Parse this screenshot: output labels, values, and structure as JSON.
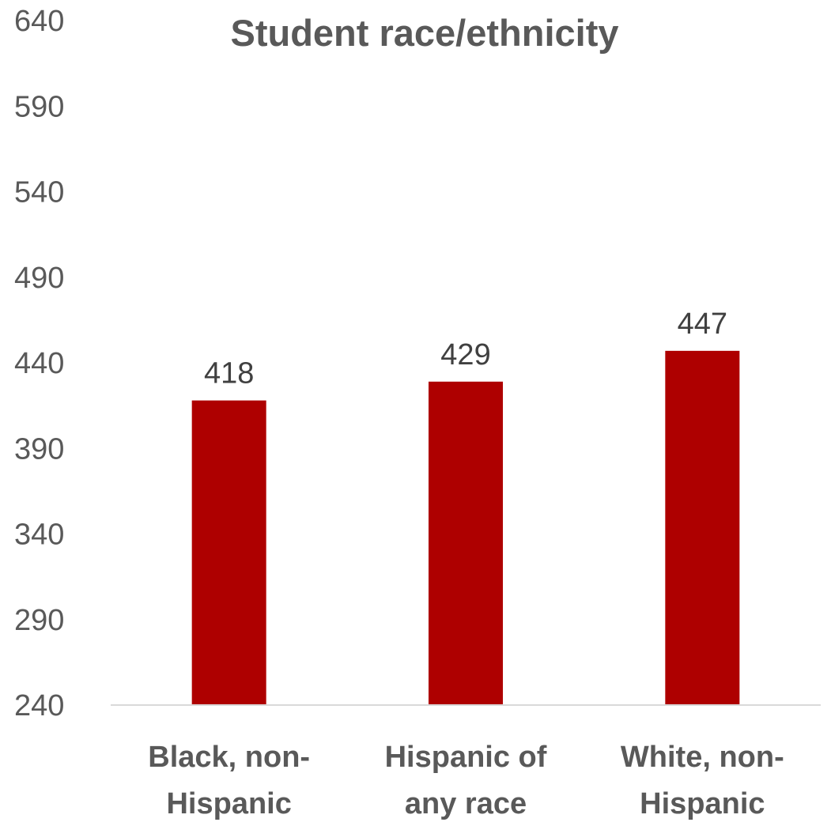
{
  "chart_data": {
    "type": "bar",
    "title": "Student race/ethnicity",
    "xlabel": "",
    "ylabel": "",
    "categories": [
      [
        "Black, non-",
        "Hispanic"
      ],
      [
        "Hispanic of",
        "any race"
      ],
      [
        "White, non-",
        "Hispanic"
      ]
    ],
    "values": [
      418,
      429,
      447
    ],
    "data_labels": [
      "418",
      "429",
      "447"
    ],
    "ylim": [
      240,
      640
    ],
    "yticks": [
      240,
      290,
      340,
      390,
      440,
      490,
      540,
      590,
      640
    ],
    "ytick_labels": [
      "240",
      "290",
      "340",
      "390",
      "440",
      "490",
      "540",
      "590",
      "640"
    ],
    "grid": false,
    "legend": "none",
    "colors": {
      "bar": "#AE0000",
      "text": "#595959",
      "data_label": "#404040",
      "axis_line": "#D9D9D9"
    }
  }
}
